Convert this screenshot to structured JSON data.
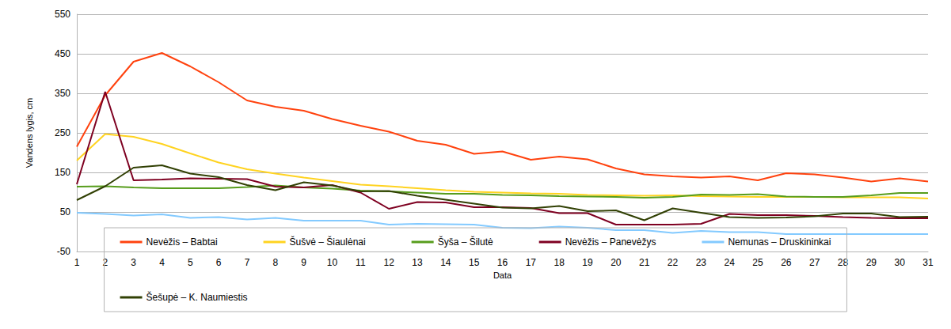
{
  "chart_data": {
    "type": "line",
    "x_label": "Data",
    "y_label": "Vandens lygis, cm",
    "categories": [
      "1",
      "2",
      "3",
      "4",
      "5",
      "6",
      "7",
      "8",
      "9",
      "10",
      "11",
      "12",
      "13",
      "14",
      "15",
      "16",
      "17",
      "18",
      "19",
      "20",
      "21",
      "22",
      "23",
      "24",
      "25",
      "26",
      "27",
      "28",
      "29",
      "30",
      "31"
    ],
    "series": [
      {
        "name": "Nevėžis – Babtai",
        "color": "#ff420e",
        "values": [
          215,
          345,
          430,
          452,
          418,
          378,
          332,
          316,
          306,
          285,
          268,
          253,
          230,
          220,
          197,
          203,
          182,
          190,
          183,
          160,
          145,
          140,
          137,
          140,
          130,
          148,
          145,
          137,
          127,
          135,
          127
        ]
      },
      {
        "name": "Šušvė – Šiaulėnai",
        "color": "#ffd320",
        "values": [
          180,
          247,
          240,
          222,
          198,
          175,
          158,
          147,
          137,
          128,
          119,
          115,
          110,
          105,
          101,
          99,
          97,
          96,
          93,
          92,
          91,
          92,
          90,
          89,
          88,
          88,
          88,
          87,
          87,
          87,
          84
        ]
      },
      {
        "name": "Šyša – Šilutė",
        "color": "#579d1c",
        "values": [
          114,
          115,
          112,
          110,
          110,
          110,
          113,
          117,
          112,
          109,
          104,
          102,
          99,
          96,
          96,
          93,
          92,
          90,
          89,
          88,
          86,
          88,
          94,
          93,
          95,
          89,
          88,
          88,
          92,
          98,
          98
        ]
      },
      {
        "name": "Nevėžis – Panevėžys",
        "color": "#7e0021",
        "values": [
          120,
          354,
          130,
          132,
          135,
          134,
          133,
          114,
          112,
          118,
          99,
          58,
          75,
          74,
          62,
          62,
          60,
          47,
          47,
          18,
          18,
          18,
          20,
          45,
          42,
          42,
          40,
          37,
          35,
          34,
          34
        ]
      },
      {
        "name": "Nemunas – Druskininkai",
        "color": "#83caff",
        "values": [
          48,
          45,
          41,
          44,
          35,
          37,
          31,
          35,
          28,
          28,
          28,
          18,
          20,
          19,
          18,
          10,
          9,
          13,
          10,
          4,
          4,
          -3,
          2,
          -1,
          -1,
          -6,
          -6,
          -6,
          -6,
          -6,
          -6
        ]
      },
      {
        "name": "Šešupė – K. Naumiestis",
        "color": "#314004",
        "values": [
          80,
          115,
          162,
          168,
          147,
          138,
          118,
          105,
          125,
          117,
          102,
          103,
          91,
          81,
          71,
          61,
          59,
          65,
          52,
          54,
          29,
          59,
          48,
          37,
          35,
          36,
          39,
          46,
          46,
          37,
          38
        ]
      }
    ],
    "ylim": [
      -50,
      550
    ],
    "yticks": [
      -50,
      50,
      150,
      250,
      350,
      450,
      550
    ],
    "grid": true,
    "legend": "bottom"
  }
}
